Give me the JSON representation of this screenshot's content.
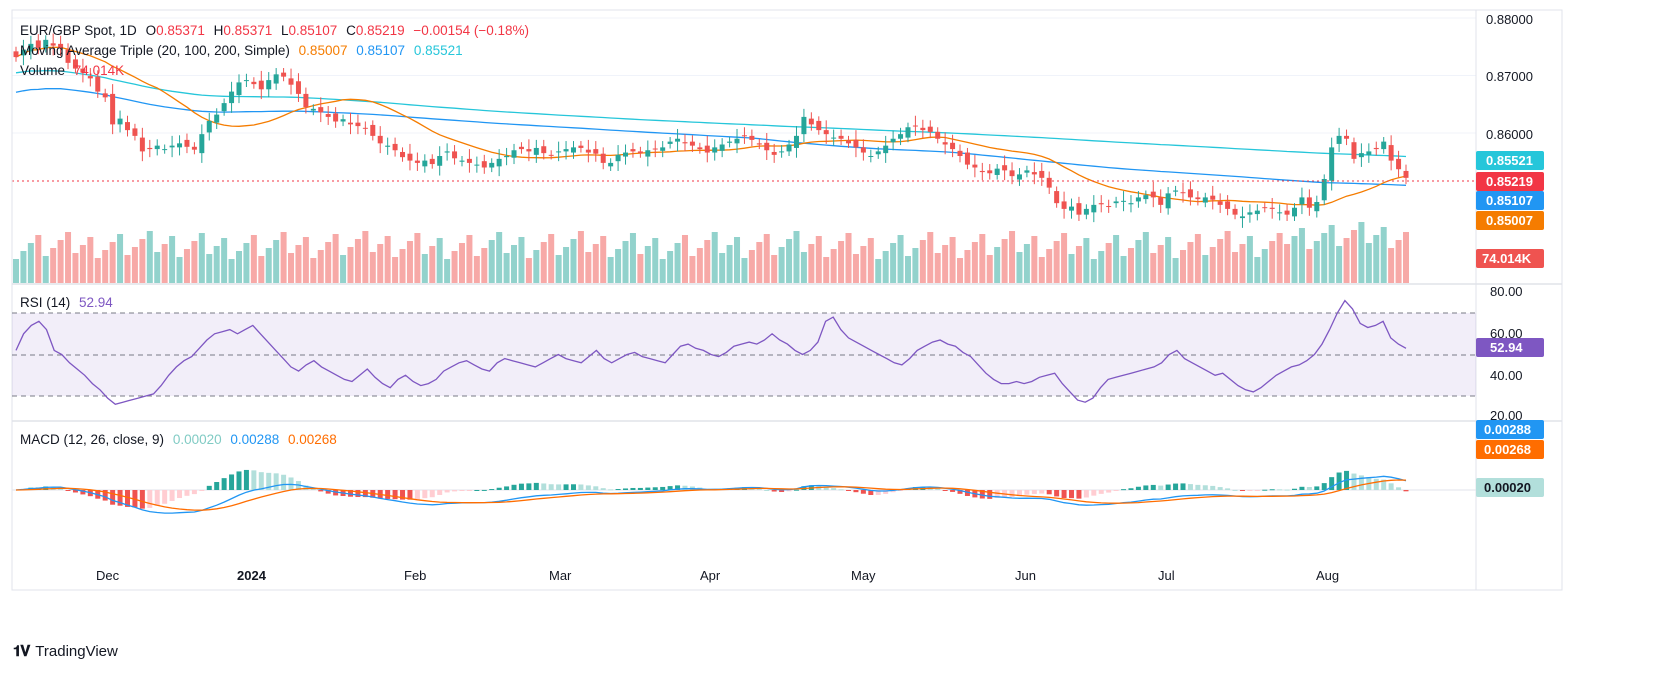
{
  "header": {
    "symbol": "EUR/GBP Spot, 1D",
    "o_label": "O",
    "o": "0.85371",
    "h_label": "H",
    "h": "0.85371",
    "l_label": "L",
    "l": "0.85107",
    "c_label": "C",
    "c": "0.85219",
    "change": "−0.00154 (−0.18%)",
    "ma_label": "Moving Average Triple (20, 100, 200, Simple)",
    "ma20": "0.85007",
    "ma100": "0.85107",
    "ma200": "0.85521",
    "volume_label": "Volume",
    "volume": "74.014K",
    "rsi_label": "RSI (14)",
    "rsi": "52.94",
    "macd_label": "MACD (12, 26, close, 9)",
    "macd_hist": "0.00020",
    "macd_line": "0.00288",
    "macd_signal": "0.00268"
  },
  "colors": {
    "up": "#26a69a",
    "down": "#ef5350",
    "ma20": "#f57c00",
    "ma100": "#2196f3",
    "ma200": "#26c6da",
    "rsi": "#7e57c2",
    "macd": "#2196f3",
    "signal": "#ff6d00"
  },
  "brand": "TradingView",
  "chart_data": [
    {
      "type": "candlestick",
      "title": "EUR/GBP Spot, 1D",
      "ylim": [
        0.845,
        0.88
      ],
      "y_ticks": [
        "0.88000",
        "0.87000",
        "0.86000"
      ],
      "x_ticks": [
        "Dec",
        "2024",
        "Feb",
        "Mar",
        "Apr",
        "May",
        "Jun",
        "Jul",
        "Aug"
      ],
      "close_series": [
        0.8732,
        0.8745,
        0.8755,
        0.8748,
        0.8762,
        0.8752,
        0.8748,
        0.8722,
        0.8712,
        0.8705,
        0.8695,
        0.8672,
        0.8662,
        0.8615,
        0.8625,
        0.8605,
        0.8595,
        0.8568,
        0.8572,
        0.8578,
        0.8572,
        0.8578,
        0.8582,
        0.8576,
        0.8571,
        0.8598,
        0.8621,
        0.8632,
        0.8652,
        0.8672,
        0.8688,
        0.8692,
        0.8685,
        0.8676,
        0.8692,
        0.8702,
        0.8698,
        0.8684,
        0.8668,
        0.8645,
        0.8642,
        0.8636,
        0.8628,
        0.862,
        0.8624,
        0.8615,
        0.8612,
        0.8608,
        0.8595,
        0.8582,
        0.8578,
        0.857,
        0.8558,
        0.8552,
        0.8548,
        0.8552,
        0.8546,
        0.856,
        0.8568,
        0.8556,
        0.8552,
        0.8548,
        0.8545,
        0.854,
        0.8548,
        0.8555,
        0.856,
        0.857,
        0.8572,
        0.8568,
        0.8574,
        0.8565,
        0.8562,
        0.8568,
        0.8572,
        0.8575,
        0.8574,
        0.8566,
        0.8564,
        0.8548,
        0.8548,
        0.8562,
        0.8566,
        0.8568,
        0.8565,
        0.857,
        0.8572,
        0.8575,
        0.8585,
        0.859,
        0.8582,
        0.8578,
        0.8572,
        0.8566,
        0.8575,
        0.858,
        0.8585,
        0.859,
        0.8595,
        0.8588,
        0.858,
        0.857,
        0.8562,
        0.8568,
        0.858,
        0.8595,
        0.8628,
        0.8615,
        0.8605,
        0.8598,
        0.8592,
        0.859,
        0.8582,
        0.8575,
        0.8566,
        0.856,
        0.8568,
        0.8578,
        0.859,
        0.8598,
        0.861,
        0.8612,
        0.8605,
        0.8602,
        0.859,
        0.858,
        0.8572,
        0.856,
        0.8545,
        0.854,
        0.8532,
        0.853,
        0.8538,
        0.8535,
        0.8525,
        0.8528,
        0.8535,
        0.8528,
        0.8522,
        0.8505,
        0.8478,
        0.8468,
        0.8472,
        0.8458,
        0.8468,
        0.8475,
        0.8476,
        0.8472,
        0.8481,
        0.8482,
        0.8478,
        0.8488,
        0.8492,
        0.8488,
        0.8475,
        0.8495,
        0.85,
        0.8496,
        0.8488,
        0.8485,
        0.8488,
        0.8484,
        0.8475,
        0.8468,
        0.8458,
        0.8455,
        0.8462,
        0.8465,
        0.847,
        0.8468,
        0.8462,
        0.8458,
        0.847,
        0.8488,
        0.847,
        0.848,
        0.852,
        0.8575,
        0.8595,
        0.859,
        0.8555,
        0.8565,
        0.8568,
        0.8572,
        0.8585,
        0.8552,
        0.8537,
        0.8522
      ],
      "ma20": "0.85007",
      "ma100": "0.85107",
      "ma200": "0.85521",
      "last_close": "0.85219",
      "price_labels": [
        "0.85521",
        "0.85219",
        "0.85107",
        "0.85007"
      ]
    },
    {
      "type": "bar",
      "title": "Volume",
      "last": "74.014K"
    },
    {
      "type": "line",
      "title": "RSI (14)",
      "ylim": [
        20,
        80
      ],
      "y_ticks": [
        "80.00",
        "60.00",
        "40.00",
        "20.00"
      ],
      "bands": [
        70,
        50,
        30
      ],
      "last": "52.94",
      "values": [
        52,
        60,
        64,
        66,
        62,
        52,
        50,
        46,
        43,
        40,
        36,
        33,
        29,
        26,
        27,
        28,
        29,
        30,
        31,
        35,
        40,
        44,
        47,
        49,
        53,
        57,
        60,
        61,
        62,
        60,
        62,
        64,
        60,
        56,
        52,
        48,
        44,
        42,
        45,
        47,
        44,
        42,
        40,
        38,
        37,
        40,
        43,
        39,
        36,
        34,
        38,
        40,
        37,
        35,
        36,
        38,
        42,
        44,
        46,
        47,
        45,
        43,
        42,
        46,
        48,
        47,
        46,
        45,
        44,
        46,
        48,
        50,
        48,
        47,
        46,
        49,
        52,
        48,
        46,
        48,
        50,
        51,
        49,
        48,
        47,
        46,
        50,
        54,
        55,
        53,
        52,
        50,
        49,
        51,
        54,
        55,
        56,
        55,
        57,
        60,
        57,
        55,
        52,
        50,
        52,
        56,
        66,
        68,
        62,
        58,
        56,
        54,
        52,
        50,
        48,
        46,
        45,
        48,
        52,
        54,
        56,
        57,
        55,
        54,
        51,
        49,
        45,
        41,
        38,
        36,
        36,
        37,
        36,
        37,
        39,
        40,
        41,
        36,
        32,
        28,
        27,
        29,
        34,
        38,
        39,
        40,
        41,
        42,
        43,
        44,
        46,
        50,
        52,
        48,
        46,
        44,
        42,
        40,
        41,
        38,
        35,
        33,
        32,
        34,
        37,
        40,
        42,
        44,
        45,
        47,
        50,
        55,
        62,
        70,
        76,
        72,
        65,
        63,
        64,
        66,
        58,
        55,
        53
      ]
    },
    {
      "type": "bar",
      "title": "MACD (12, 26, close, 9)",
      "legend": [
        "0.00020",
        "0.00288",
        "0.00268"
      ],
      "labels": [
        "0.00288",
        "0.00268",
        "0.00020"
      ]
    }
  ]
}
